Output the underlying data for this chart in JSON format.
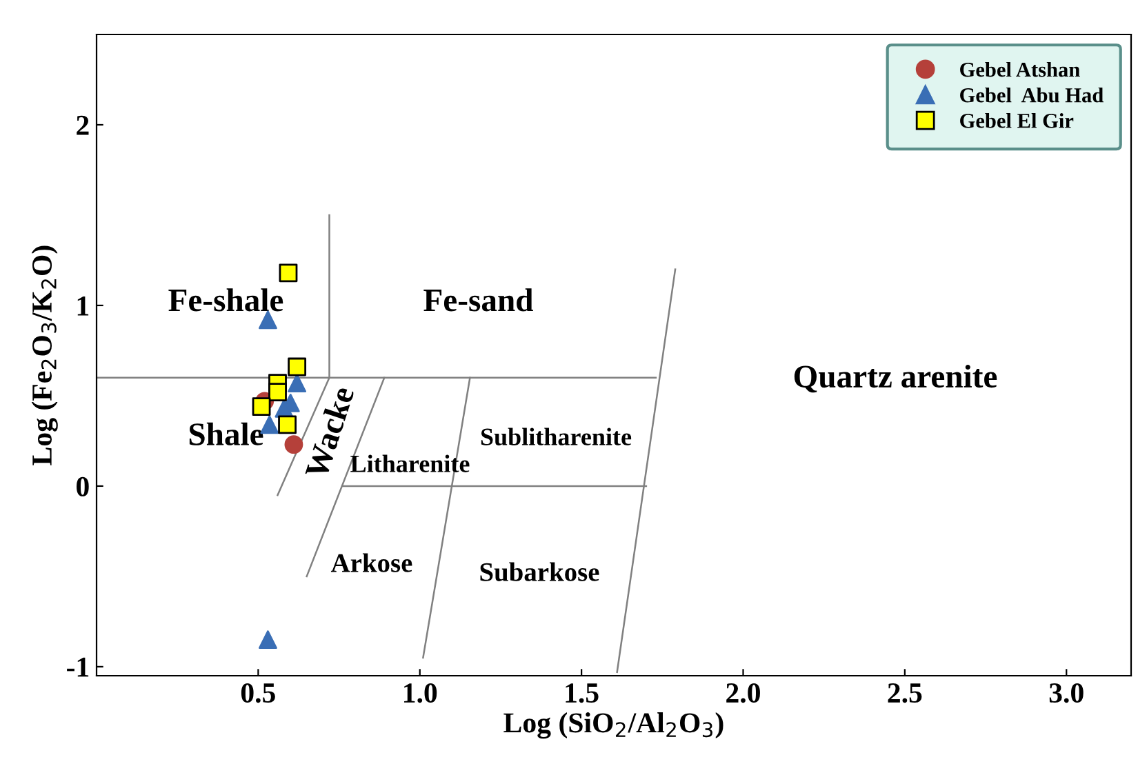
{
  "chart_data": {
    "type": "scatter",
    "xlabel": "Log (SiO$_{2}$/Al$_{2}$O$_{3}$)",
    "ylabel": "Log (Fe$_{2}$O$_{3}$/K$_{2}$O)",
    "xlim": [
      0,
      3.2
    ],
    "ylim": [
      -1.05,
      2.5
    ],
    "xticks": [
      0.5,
      {
        "value": 1,
        "label": "1.0"
      },
      1.5,
      {
        "value": 2,
        "label": "2.0"
      },
      2.5,
      {
        "value": 3,
        "label": "3.0"
      }
    ],
    "yticks": [
      -1,
      0,
      1,
      2
    ],
    "grid": false,
    "legend": "top right",
    "series": [
      {
        "type": "line",
        "color": "#808080",
        "x": [
          0.72,
          0.72,
          0.56
        ],
        "values": [
          1.5,
          0.6,
          -0.05
        ]
      },
      {
        "type": "line",
        "color": "#808080",
        "x": [
          0,
          1.73
        ],
        "values": [
          0.6,
          0.6
        ]
      },
      {
        "type": "line",
        "color": "#808080",
        "x": [
          0.89,
          0.65
        ],
        "values": [
          0.6,
          -0.5
        ]
      },
      {
        "type": "line",
        "color": "#808080",
        "x": [
          1.155,
          1.01
        ],
        "values": [
          0.6,
          -0.95
        ]
      },
      {
        "type": "line",
        "color": "#808080",
        "x": [
          0.76,
          1.7
        ],
        "values": [
          0,
          0
        ]
      },
      {
        "type": "line",
        "color": "#808080",
        "x": [
          1.79,
          1.61
        ],
        "values": [
          1.2,
          -1.03
        ]
      },
      {
        "name": "Gebel Atshan",
        "color": "#b5403a",
        "marker": "circle",
        "x": [
          0.61,
          0.52
        ],
        "values": [
          0.23,
          0.47
        ]
      },
      {
        "name": "Gebel  Abu Had",
        "color": "#3a6eb5",
        "marker": "triangle",
        "x": [
          0.53,
          0.62,
          0.6,
          0.535,
          0.58,
          0.53
        ],
        "values": [
          0.92,
          0.57,
          0.46,
          0.34,
          0.43,
          -0.85
        ]
      },
      {
        "name": "Gebel El Gir",
        "color": "#ffff00",
        "marker": "square",
        "x": [
          0.593,
          0.62,
          0.56,
          0.56,
          0.51,
          0.59
        ],
        "values": [
          1.18,
          0.66,
          0.57,
          0.52,
          0.44,
          0.34
        ]
      }
    ],
    "annotations": [
      "Fe-shale",
      "Fe-sand",
      "Quartz arenite",
      "Shale",
      "Wacke",
      "Litharenite",
      "Sublitharenite",
      "Arkose",
      "Subarkose"
    ]
  }
}
